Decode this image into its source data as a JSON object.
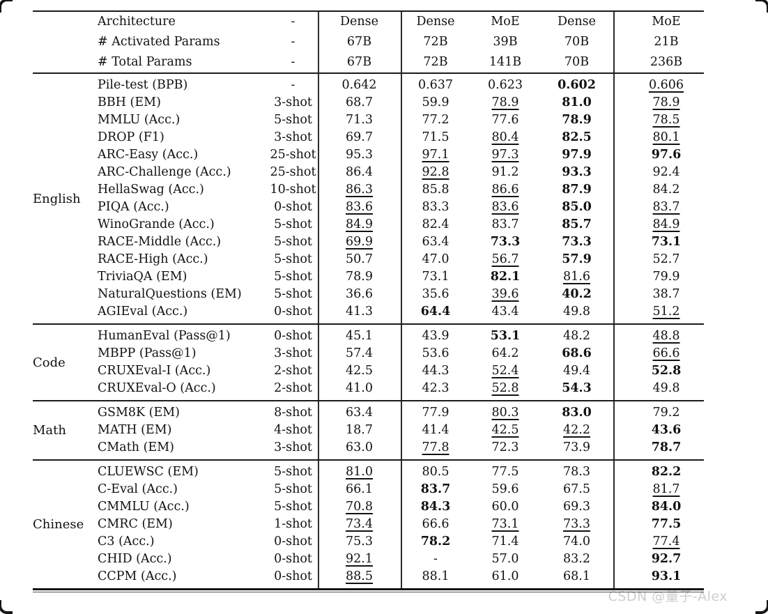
{
  "watermark": "CSDN @量子-Alex",
  "colors": {
    "text": "#111111",
    "rule": "#1b1b1b",
    "watermark": "#cdcdcd"
  },
  "table": {
    "header": {
      "rows": [
        {
          "label": "Architecture",
          "shot": "-",
          "values": [
            {
              "v": "Dense"
            },
            {
              "v": "Dense"
            },
            {
              "v": "MoE"
            },
            {
              "v": "Dense"
            },
            {
              "v": "MoE"
            }
          ]
        },
        {
          "label": "# Activated Params",
          "shot": "-",
          "values": [
            {
              "v": "67B"
            },
            {
              "v": "72B"
            },
            {
              "v": "39B"
            },
            {
              "v": "70B"
            },
            {
              "v": "21B"
            }
          ]
        },
        {
          "label": "# Total Params",
          "shot": "-",
          "values": [
            {
              "v": "67B"
            },
            {
              "v": "72B"
            },
            {
              "v": "141B"
            },
            {
              "v": "70B"
            },
            {
              "v": "236B"
            }
          ]
        }
      ]
    },
    "sections": [
      {
        "name": "English",
        "rows": [
          {
            "benchmark": "Pile-test (BPB)",
            "shot": "-",
            "values": [
              {
                "v": "0.642"
              },
              {
                "v": "0.637"
              },
              {
                "v": "0.623"
              },
              {
                "v": "0.602",
                "f": "b"
              },
              {
                "v": "0.606",
                "f": "u"
              }
            ]
          },
          {
            "benchmark": "BBH (EM)",
            "shot": "3-shot",
            "values": [
              {
                "v": "68.7"
              },
              {
                "v": "59.9"
              },
              {
                "v": "78.9",
                "f": "u"
              },
              {
                "v": "81.0",
                "f": "b"
              },
              {
                "v": "78.9",
                "f": "u"
              }
            ]
          },
          {
            "benchmark": "MMLU (Acc.)",
            "shot": "5-shot",
            "values": [
              {
                "v": "71.3"
              },
              {
                "v": "77.2"
              },
              {
                "v": "77.6"
              },
              {
                "v": "78.9",
                "f": "b"
              },
              {
                "v": "78.5",
                "f": "u"
              }
            ]
          },
          {
            "benchmark": "DROP (F1)",
            "shot": "3-shot",
            "values": [
              {
                "v": "69.7"
              },
              {
                "v": "71.5"
              },
              {
                "v": "80.4",
                "f": "u"
              },
              {
                "v": "82.5",
                "f": "b"
              },
              {
                "v": "80.1",
                "f": "u"
              }
            ]
          },
          {
            "benchmark": "ARC-Easy (Acc.)",
            "shot": "25-shot",
            "values": [
              {
                "v": "95.3"
              },
              {
                "v": "97.1",
                "f": "u"
              },
              {
                "v": "97.3",
                "f": "u"
              },
              {
                "v": "97.9",
                "f": "b"
              },
              {
                "v": "97.6",
                "f": "b"
              }
            ]
          },
          {
            "benchmark": "ARC-Challenge (Acc.)",
            "shot": "25-shot",
            "values": [
              {
                "v": "86.4"
              },
              {
                "v": "92.8",
                "f": "u"
              },
              {
                "v": "91.2"
              },
              {
                "v": "93.3",
                "f": "b"
              },
              {
                "v": "92.4"
              }
            ]
          },
          {
            "benchmark": "HellaSwag (Acc.)",
            "shot": "10-shot",
            "values": [
              {
                "v": "86.3",
                "f": "u"
              },
              {
                "v": "85.8"
              },
              {
                "v": "86.6",
                "f": "u"
              },
              {
                "v": "87.9",
                "f": "b"
              },
              {
                "v": "84.2"
              }
            ]
          },
          {
            "benchmark": "PIQA (Acc.)",
            "shot": "0-shot",
            "values": [
              {
                "v": "83.6",
                "f": "u"
              },
              {
                "v": "83.3"
              },
              {
                "v": "83.6",
                "f": "u"
              },
              {
                "v": "85.0",
                "f": "b"
              },
              {
                "v": "83.7",
                "f": "u"
              }
            ]
          },
          {
            "benchmark": "WinoGrande (Acc.)",
            "shot": "5-shot",
            "values": [
              {
                "v": "84.9",
                "f": "u"
              },
              {
                "v": "82.4"
              },
              {
                "v": "83.7"
              },
              {
                "v": "85.7",
                "f": "b"
              },
              {
                "v": "84.9",
                "f": "u"
              }
            ]
          },
          {
            "benchmark": "RACE-Middle (Acc.)",
            "shot": "5-shot",
            "values": [
              {
                "v": "69.9",
                "f": "u"
              },
              {
                "v": "63.4"
              },
              {
                "v": "73.3",
                "f": "b"
              },
              {
                "v": "73.3",
                "f": "b"
              },
              {
                "v": "73.1",
                "f": "b"
              }
            ]
          },
          {
            "benchmark": "RACE-High (Acc.)",
            "shot": "5-shot",
            "values": [
              {
                "v": "50.7"
              },
              {
                "v": "47.0"
              },
              {
                "v": "56.7",
                "f": "u"
              },
              {
                "v": "57.9",
                "f": "b"
              },
              {
                "v": "52.7"
              }
            ]
          },
          {
            "benchmark": "TriviaQA (EM)",
            "shot": "5-shot",
            "values": [
              {
                "v": "78.9"
              },
              {
                "v": "73.1"
              },
              {
                "v": "82.1",
                "f": "b"
              },
              {
                "v": "81.6",
                "f": "u"
              },
              {
                "v": "79.9"
              }
            ]
          },
          {
            "benchmark": "NaturalQuestions (EM)",
            "shot": "5-shot",
            "values": [
              {
                "v": "36.6"
              },
              {
                "v": "35.6"
              },
              {
                "v": "39.6",
                "f": "u"
              },
              {
                "v": "40.2",
                "f": "b"
              },
              {
                "v": "38.7"
              }
            ]
          },
          {
            "benchmark": "AGIEval (Acc.)",
            "shot": "0-shot",
            "values": [
              {
                "v": "41.3"
              },
              {
                "v": "64.4",
                "f": "b"
              },
              {
                "v": "43.4"
              },
              {
                "v": "49.8"
              },
              {
                "v": "51.2",
                "f": "u"
              }
            ]
          }
        ]
      },
      {
        "name": "Code",
        "rows": [
          {
            "benchmark": "HumanEval (Pass@1)",
            "shot": "0-shot",
            "values": [
              {
                "v": "45.1"
              },
              {
                "v": "43.9"
              },
              {
                "v": "53.1",
                "f": "b"
              },
              {
                "v": "48.2"
              },
              {
                "v": "48.8",
                "f": "u"
              }
            ]
          },
          {
            "benchmark": "MBPP (Pass@1)",
            "shot": "3-shot",
            "values": [
              {
                "v": "57.4"
              },
              {
                "v": "53.6"
              },
              {
                "v": "64.2"
              },
              {
                "v": "68.6",
                "f": "b"
              },
              {
                "v": "66.6",
                "f": "u"
              }
            ]
          },
          {
            "benchmark": "CRUXEval-I (Acc.)",
            "shot": "2-shot",
            "values": [
              {
                "v": "42.5"
              },
              {
                "v": "44.3"
              },
              {
                "v": "52.4",
                "f": "u"
              },
              {
                "v": "49.4"
              },
              {
                "v": "52.8",
                "f": "b"
              }
            ]
          },
          {
            "benchmark": "CRUXEval-O (Acc.)",
            "shot": "2-shot",
            "values": [
              {
                "v": "41.0"
              },
              {
                "v": "42.3"
              },
              {
                "v": "52.8",
                "f": "u"
              },
              {
                "v": "54.3",
                "f": "b"
              },
              {
                "v": "49.8"
              }
            ]
          }
        ]
      },
      {
        "name": "Math",
        "rows": [
          {
            "benchmark": "GSM8K (EM)",
            "shot": "8-shot",
            "values": [
              {
                "v": "63.4"
              },
              {
                "v": "77.9"
              },
              {
                "v": "80.3",
                "f": "u"
              },
              {
                "v": "83.0",
                "f": "b"
              },
              {
                "v": "79.2"
              }
            ]
          },
          {
            "benchmark": "MATH (EM)",
            "shot": "4-shot",
            "values": [
              {
                "v": "18.7"
              },
              {
                "v": "41.4"
              },
              {
                "v": "42.5",
                "f": "u"
              },
              {
                "v": "42.2",
                "f": "u"
              },
              {
                "v": "43.6",
                "f": "b"
              }
            ]
          },
          {
            "benchmark": "CMath (EM)",
            "shot": "3-shot",
            "values": [
              {
                "v": "63.0"
              },
              {
                "v": "77.8",
                "f": "u"
              },
              {
                "v": "72.3"
              },
              {
                "v": "73.9"
              },
              {
                "v": "78.7",
                "f": "b"
              }
            ]
          }
        ]
      },
      {
        "name": "Chinese",
        "rows": [
          {
            "benchmark": "CLUEWSC (EM)",
            "shot": "5-shot",
            "values": [
              {
                "v": "81.0",
                "f": "u"
              },
              {
                "v": "80.5"
              },
              {
                "v": "77.5"
              },
              {
                "v": "78.3"
              },
              {
                "v": "82.2",
                "f": "b"
              }
            ]
          },
          {
            "benchmark": "C-Eval (Acc.)",
            "shot": "5-shot",
            "values": [
              {
                "v": "66.1"
              },
              {
                "v": "83.7",
                "f": "b"
              },
              {
                "v": "59.6"
              },
              {
                "v": "67.5"
              },
              {
                "v": "81.7",
                "f": "u"
              }
            ]
          },
          {
            "benchmark": "CMMLU (Acc.)",
            "shot": "5-shot",
            "values": [
              {
                "v": "70.8",
                "f": "u"
              },
              {
                "v": "84.3",
                "f": "b"
              },
              {
                "v": "60.0"
              },
              {
                "v": "69.3"
              },
              {
                "v": "84.0",
                "f": "b"
              }
            ]
          },
          {
            "benchmark": "CMRC (EM)",
            "shot": "1-shot",
            "values": [
              {
                "v": "73.4",
                "f": "u"
              },
              {
                "v": "66.6"
              },
              {
                "v": "73.1",
                "f": "u"
              },
              {
                "v": "73.3",
                "f": "u"
              },
              {
                "v": "77.5",
                "f": "b"
              }
            ]
          },
          {
            "benchmark": "C3 (Acc.)",
            "shot": "0-shot",
            "values": [
              {
                "v": "75.3"
              },
              {
                "v": "78.2",
                "f": "b"
              },
              {
                "v": "71.4"
              },
              {
                "v": "74.0"
              },
              {
                "v": "77.4",
                "f": "u"
              }
            ]
          },
          {
            "benchmark": "CHID (Acc.)",
            "shot": "0-shot",
            "values": [
              {
                "v": "92.1",
                "f": "u"
              },
              {
                "v": "-"
              },
              {
                "v": "57.0"
              },
              {
                "v": "83.2"
              },
              {
                "v": "92.7",
                "f": "b"
              }
            ]
          },
          {
            "benchmark": "CCPM (Acc.)",
            "shot": "0-shot",
            "values": [
              {
                "v": "88.5",
                "f": "u"
              },
              {
                "v": "88.1"
              },
              {
                "v": "61.0"
              },
              {
                "v": "68.1"
              },
              {
                "v": "93.1",
                "f": "b"
              }
            ]
          }
        ]
      }
    ]
  }
}
